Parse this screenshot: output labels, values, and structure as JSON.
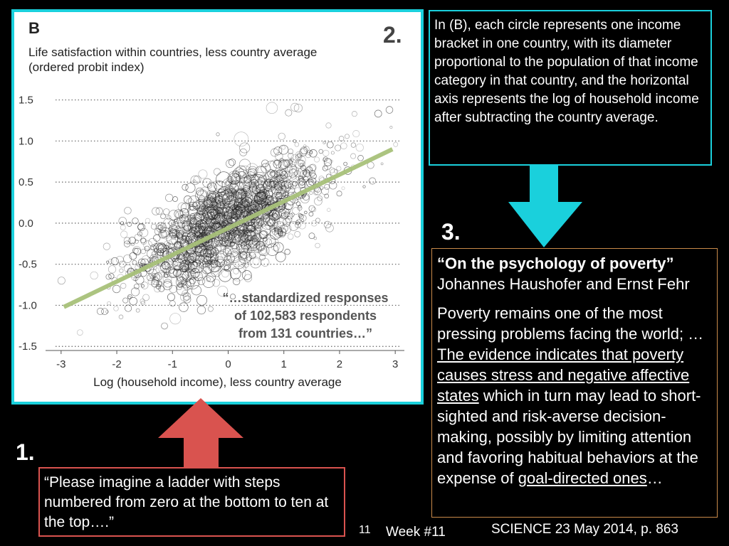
{
  "colors": {
    "cyan": "#1ad0dc",
    "red_arrow": "#d9534f",
    "orange_border": "#c98a4a",
    "trend": "#a8c17a"
  },
  "chart_panel": {
    "panel_letter": "B",
    "step_label": "2.",
    "title_line1": "Life satisfaction within countries, less country average",
    "title_line2": "(ordered probit index)",
    "annotation_line1": "“…standardized responses",
    "annotation_line2": "of 102,583 respondents",
    "annotation_line3": "from 131 countries…”"
  },
  "chart_data": {
    "type": "scatter",
    "title": "Life satisfaction within countries, less country average (ordered probit index)",
    "xlabel": "Log (household income), less country average",
    "ylabel": "",
    "xlim": [
      -3.1,
      3.1
    ],
    "ylim": [
      -1.55,
      1.6
    ],
    "x_ticks": [
      -3,
      -2,
      -1,
      0,
      1,
      2,
      3
    ],
    "y_ticks": [
      1.5,
      1.0,
      0.5,
      0.0,
      -0.5,
      -1.0,
      -1.5
    ],
    "y_tick_labels": [
      "1.5",
      "1.0",
      "0.5",
      "0.0",
      "-0.5",
      "-1.0",
      "-1.5"
    ],
    "grid": "horizontal dotted",
    "trend_line": {
      "x": [
        -2.95,
        2.95
      ],
      "y": [
        -1.02,
        0.9
      ]
    },
    "point_cloud": {
      "count": 1400,
      "x_mean": 0.0,
      "x_sd": 1.0,
      "slope": 0.325,
      "y_sd": 0.3
    }
  },
  "description": {
    "text": " In (B), each circle represents one income bracket in one country, with its diameter proportional to the population of that income category in that country, and the horizontal axis represents the log of household income after subtracting the country average."
  },
  "step3": "3.",
  "paper": {
    "title": "“On the psychology of poverty”",
    "authors": "Johannes Haushofer and Ernst Fehr",
    "abstract_part1": "Poverty remains one of the most pressing problems facing the world; …",
    "abstract_underlined1": "The evidence indicates that poverty causes stress and negative affective states",
    "abstract_part2": " which in turn may lead to short-sighted and risk-averse decision-making, possibly by limiting attention and favoring habitual behaviors at the expense of ",
    "abstract_underlined2": "goal-directed ones",
    "abstract_end": "…"
  },
  "step1": "1.",
  "quote": "“Please imagine a ladder with steps numbered from zero at the bottom to ten at the top….”",
  "footer": {
    "slide_number": "11",
    "week": "Week #11",
    "citation": "SCIENCE 23 May 2014, p. 863"
  }
}
